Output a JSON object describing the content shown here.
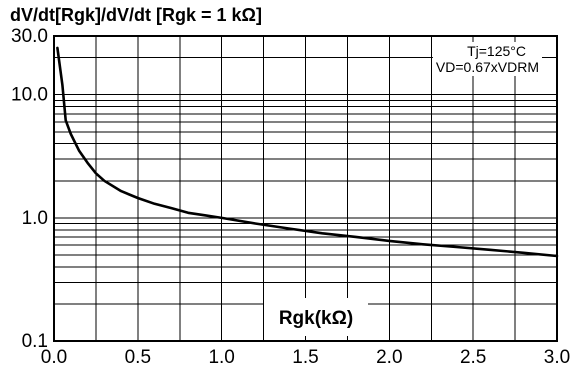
{
  "chart_data": {
    "type": "line",
    "title": "dV/dt[Rgk]/dV/dt [Rgk = 1 kΩ]",
    "xlabel": "Rgk(kΩ)",
    "ylabel": "",
    "xlim": [
      0.0,
      3.0
    ],
    "ylim": [
      0.1,
      30.0
    ],
    "yscale": "log",
    "grid": true,
    "x_ticks": [
      "0.0",
      "0.5",
      "1.0",
      "1.5",
      "2.0",
      "2.5",
      "3.0"
    ],
    "y_ticks": [
      "0.1",
      "1.0",
      "10.0",
      "30.0"
    ],
    "annotations": [
      "Tj=125°C",
      "VD=0.67xVDRM"
    ],
    "series": [
      {
        "x": [
          0.02,
          0.05,
          0.07,
          0.1,
          0.15,
          0.2,
          0.25,
          0.3,
          0.4,
          0.5,
          0.6,
          0.7,
          0.8,
          0.9,
          1.0,
          1.2,
          1.4,
          1.6,
          1.8,
          2.0,
          2.2,
          2.4,
          2.6,
          2.8,
          3.0
        ],
        "y": [
          24.0,
          12.0,
          6.2,
          4.8,
          3.5,
          2.8,
          2.3,
          2.0,
          1.65,
          1.45,
          1.3,
          1.2,
          1.1,
          1.05,
          1.0,
          0.9,
          0.82,
          0.75,
          0.7,
          0.65,
          0.61,
          0.58,
          0.55,
          0.52,
          0.49
        ]
      }
    ]
  }
}
